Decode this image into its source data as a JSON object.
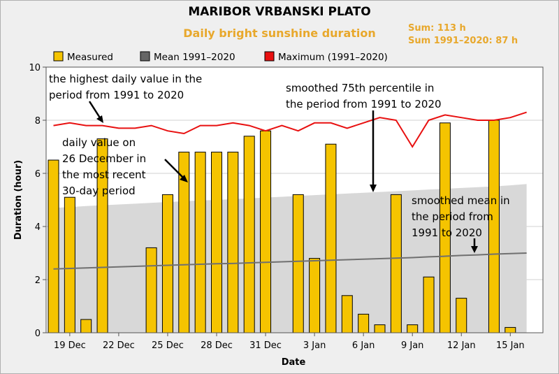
{
  "header": {
    "title": "MARIBOR VRBANSKI PLATO",
    "subtitle": "Daily bright sunshine duration",
    "sum": "Sum: 113 h",
    "sum_normal": "Sum 1991–2020: 87 h"
  },
  "colors": {
    "measured": "#f5c400",
    "mean": "#707070",
    "maximum": "#e81010",
    "band": "#d8d8d8",
    "accent": "#e8a82c"
  },
  "annotations": [
    {
      "id": "max",
      "lines": [
        "the highest daily value in the",
        "period from 1991 to 2020"
      ]
    },
    {
      "id": "p75",
      "lines": [
        "smoothed 75th percentile in",
        "the period from 1991 to 2020"
      ]
    },
    {
      "id": "daily",
      "lines": [
        "daily value on",
        "26 December in",
        "the most recent",
        "30-day period"
      ]
    },
    {
      "id": "mean",
      "lines": [
        "smoothed mean in",
        "the period from",
        "1991 to 2020"
      ]
    }
  ],
  "chart_data": {
    "type": "bar",
    "title": "MARIBOR VRBANSKI PLATO",
    "subtitle": "Daily bright sunshine duration",
    "xlabel": "Date",
    "ylabel": "Duration (hour)",
    "ylim": [
      0,
      10
    ],
    "yticks": [
      0,
      2,
      4,
      6,
      8,
      10
    ],
    "grid": true,
    "legend_position": "top",
    "x_tick_labels": [
      "19 Dec",
      "22 Dec",
      "25 Dec",
      "28 Dec",
      "31 Dec",
      "3 Jan",
      "6 Jan",
      "9 Jan",
      "12 Jan",
      "15 Jan"
    ],
    "x_tick_dates": [
      "19 Dec",
      "22 Dec",
      "25 Dec",
      "28 Dec",
      "31 Dec",
      "3 Jan",
      "6 Jan",
      "9 Jan",
      "12 Jan",
      "15 Jan"
    ],
    "dates": [
      "18 Dec",
      "19 Dec",
      "20 Dec",
      "21 Dec",
      "22 Dec",
      "23 Dec",
      "24 Dec",
      "25 Dec",
      "26 Dec",
      "27 Dec",
      "28 Dec",
      "29 Dec",
      "30 Dec",
      "31 Dec",
      "1 Jan",
      "2 Jan",
      "3 Jan",
      "4 Jan",
      "5 Jan",
      "6 Jan",
      "7 Jan",
      "8 Jan",
      "9 Jan",
      "10 Jan",
      "11 Jan",
      "12 Jan",
      "13 Jan",
      "14 Jan",
      "15 Jan",
      "16 Jan"
    ],
    "series": [
      {
        "name": "Measured",
        "kind": "bar",
        "values": [
          6.5,
          5.1,
          0.5,
          7.3,
          0,
          0,
          3.2,
          5.2,
          6.8,
          6.8,
          6.8,
          6.8,
          7.4,
          7.6,
          0,
          5.2,
          2.8,
          7.1,
          1.4,
          0.7,
          0.3,
          5.2,
          0.3,
          2.1,
          7.9,
          1.3,
          0,
          8.0,
          0.2,
          null
        ]
      },
      {
        "name": "Mean 1991–2020",
        "kind": "line",
        "values": [
          2.4,
          2.42,
          2.44,
          2.46,
          2.48,
          2.5,
          2.52,
          2.54,
          2.56,
          2.58,
          2.6,
          2.61,
          2.63,
          2.65,
          2.67,
          2.69,
          2.71,
          2.73,
          2.75,
          2.77,
          2.79,
          2.81,
          2.83,
          2.86,
          2.88,
          2.91,
          2.93,
          2.96,
          2.98,
          3.0
        ]
      },
      {
        "name": "Maximum (1991–2020)",
        "kind": "line",
        "values": [
          7.8,
          7.9,
          7.8,
          7.8,
          7.7,
          7.7,
          7.8,
          7.6,
          7.5,
          7.8,
          7.8,
          7.9,
          7.8,
          7.6,
          7.8,
          7.6,
          7.9,
          7.9,
          7.7,
          7.9,
          8.1,
          8.0,
          7.0,
          8.0,
          8.2,
          8.1,
          8.0,
          8.0,
          8.1,
          8.3
        ]
      },
      {
        "name": "smoothed 75th percentile",
        "kind": "band",
        "values": [
          4.7,
          4.73,
          4.77,
          4.8,
          4.83,
          4.86,
          4.89,
          4.92,
          4.95,
          4.98,
          5.0,
          5.03,
          5.06,
          5.09,
          5.12,
          5.15,
          5.18,
          5.21,
          5.24,
          5.27,
          5.3,
          5.33,
          5.36,
          5.39,
          5.42,
          5.45,
          5.48,
          5.51,
          5.55,
          5.6
        ]
      }
    ]
  }
}
